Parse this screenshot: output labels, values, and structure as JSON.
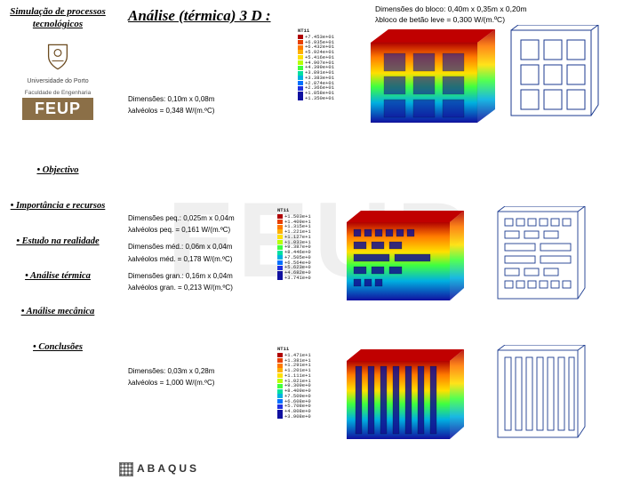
{
  "sidebar": {
    "header": "Simulação de processos tecnológicos",
    "university": "Universidade do Porto",
    "faculty_label": "Faculdade de Engenharia",
    "feup": "FEUP",
    "nav": [
      "• Objectivo",
      "• Importância e recursos",
      "• Estudo na realidade",
      "• Análise térmica",
      "• Análise mecânica",
      "• Conclusões"
    ]
  },
  "title": "Análise (térmica) 3 D :",
  "block_dims_line1": "Dimensões do bloco: 0,40m x 0,35m x 0,20m",
  "block_dims_line2": "bloco de betão leve = 0,300 W/(m.ºC)",
  "sections": {
    "holes": {
      "line1": "Dimensões: 0,10m x 0,08m",
      "line2": "alvéolos = 0,348 W/(m.ºC)"
    },
    "mixed": {
      "peq_dim": "Dimensões peq.: 0,025m x 0,04m",
      "peq_lam": "alvéolos peq. = 0,161 W/(m.ºC)",
      "med_dim": "Dimensões méd.: 0,06m x 0,04m",
      "med_lam": "alvéolos méd. = 0,178 W/(m.ºC)",
      "gran_dim": "Dimensões gran.: 0,16m x 0,04m",
      "gran_lam": "alvéolos gran. = 0,213 W/(m.ºC)"
    },
    "vert": {
      "line1": "Dimensões: 0,03m x 0,28m",
      "line2": "alvéolos = 1,000 W/(m.ºC)"
    }
  },
  "legend_colors": [
    "#b00000",
    "#e84000",
    "#ff7a00",
    "#ffb000",
    "#ffe000",
    "#b8ff00",
    "#40ff40",
    "#00e0a0",
    "#00b0e0",
    "#0070ff",
    "#2030e0",
    "#1010a0"
  ],
  "legend_values_top": [
    "+7.453e+01",
    "+6.935e+01",
    "+6.432e+01",
    "+5.924e+01",
    "+5.416e+01",
    "+4.907e+01",
    "+4.399e+01",
    "+3.891e+01",
    "+3.383e+01",
    "+2.874e+01",
    "+2.366e+01",
    "+1.858e+01",
    "+1.350e+01"
  ],
  "legend_values_r2": [
    "+1.503e+1",
    "+1.409e+1",
    "+1.315e+1",
    "+1.221e+1",
    "+1.127e+1",
    "+1.033e+1",
    "+9.387e+0",
    "+8.446e+0",
    "+7.505e+0",
    "+6.564e+0",
    "+5.623e+0",
    "+4.682e+0",
    "+3.741e+0"
  ],
  "legend_values_r3": [
    "+1.471e+1",
    "+1.381e+1",
    "+1.291e+1",
    "+1.201e+1",
    "+1.111e+1",
    "+1.021e+1",
    "+9.309e+0",
    "+8.409e+0",
    "+7.509e+0",
    "+6.608e+0",
    "+5.708e+0",
    "+4.808e+0",
    "+3.908e+0"
  ],
  "abaqus": "ABAQUS",
  "colors": {
    "wire": "#1b3a8f",
    "feup_bg": "#8b6f47"
  }
}
